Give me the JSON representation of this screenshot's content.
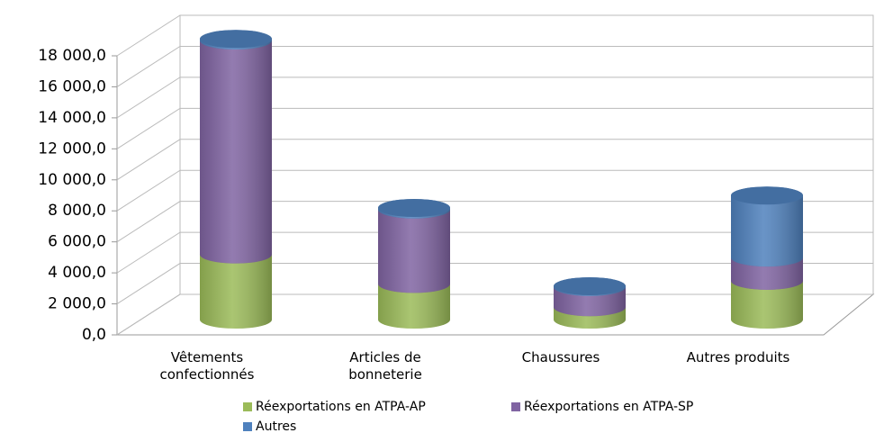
{
  "chart_data": {
    "type": "bar3d",
    "categories": [
      "Vêtements confectionnés",
      "Articles de bonneterie",
      "Chaussures",
      "Autres produits"
    ],
    "series": [
      {
        "name": "Réexportations en ATPA-AP",
        "color": "#9bbb59",
        "values": [
          4200,
          2300,
          800,
          2500
        ]
      },
      {
        "name": "Réexportations en ATPA-SP",
        "color": "#8064a2",
        "values": [
          13800,
          4800,
          1300,
          1500
        ]
      },
      {
        "name": "Autres",
        "color": "#4f81bd",
        "values": [
          100,
          100,
          50,
          4000
        ]
      }
    ],
    "ylim": [
      0,
      18000
    ],
    "yticks": [
      {
        "value": 0,
        "label": "0,0"
      },
      {
        "value": 2000,
        "label": "2 000,0"
      },
      {
        "value": 4000,
        "label": "4 000,0"
      },
      {
        "value": 6000,
        "label": "6 000,0"
      },
      {
        "value": 8000,
        "label": "8 000,0"
      },
      {
        "value": 10000,
        "label": "10 000,0"
      },
      {
        "value": 12000,
        "label": "12 000,0"
      },
      {
        "value": 14000,
        "label": "14 000,0"
      },
      {
        "value": 16000,
        "label": "16 000,0"
      },
      {
        "value": 18000,
        "label": "18 000,0"
      }
    ],
    "grid": true
  }
}
